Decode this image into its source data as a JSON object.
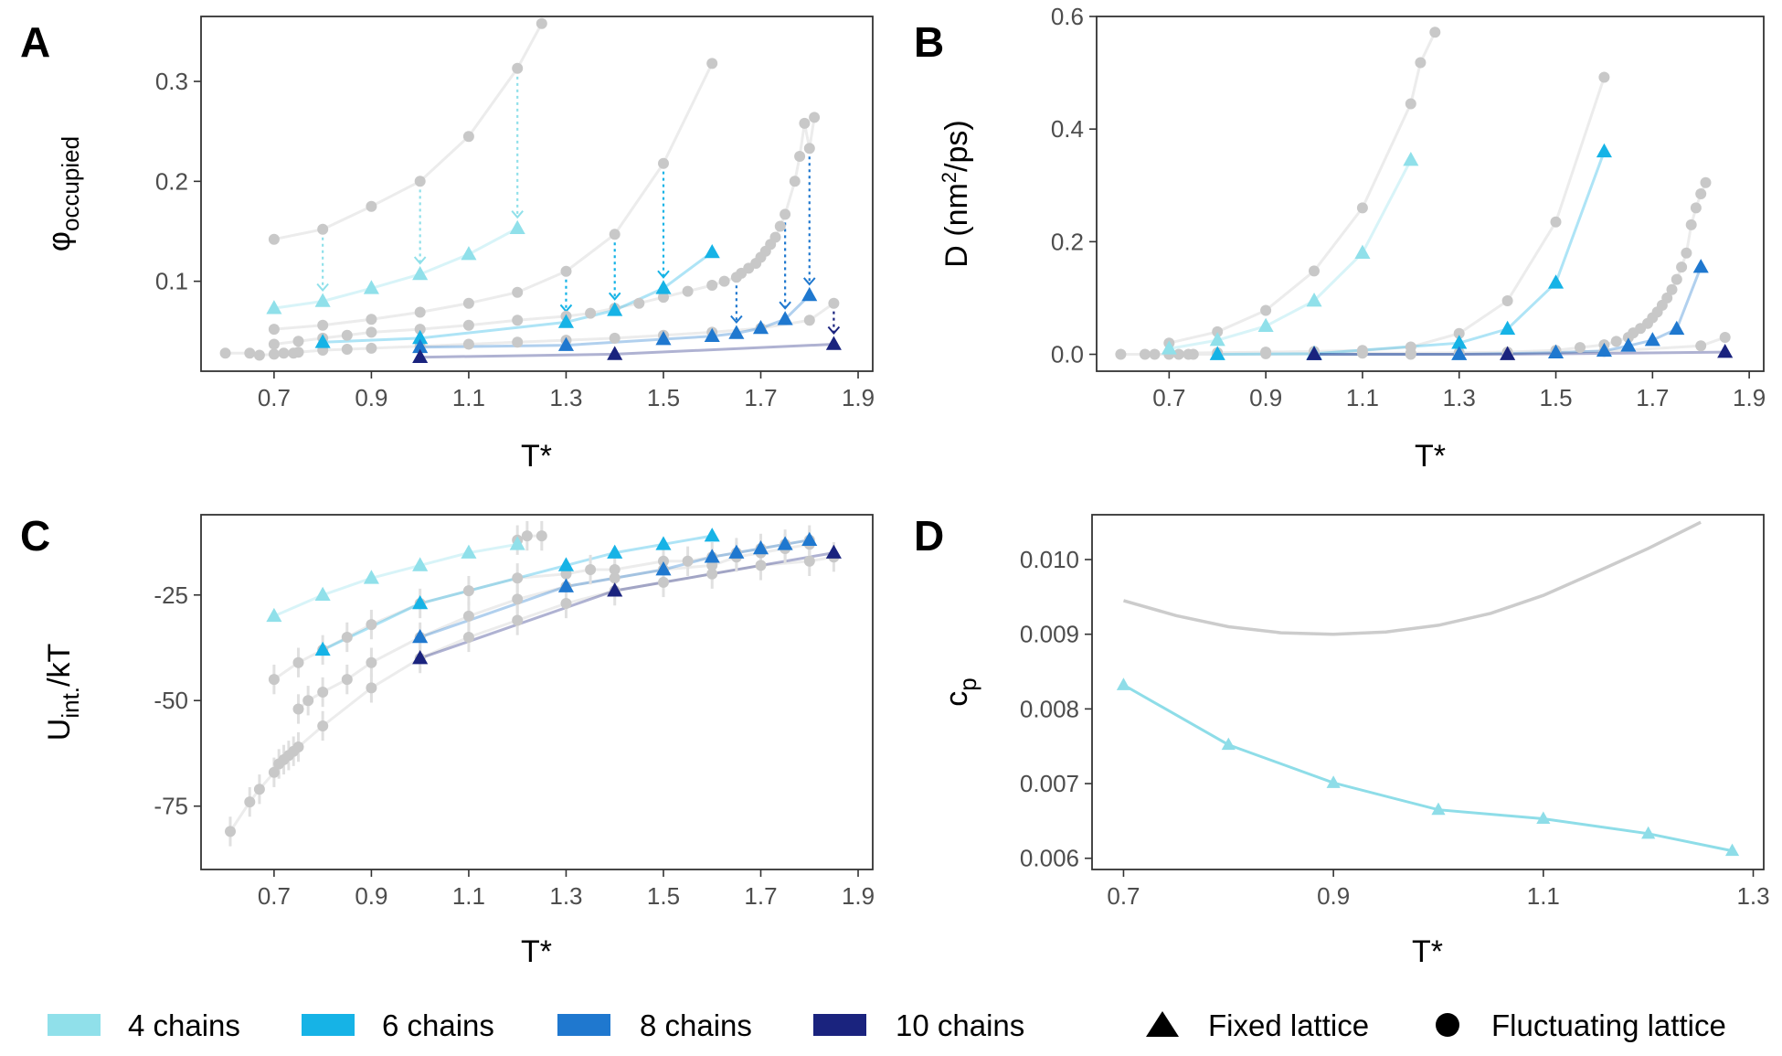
{
  "colors": {
    "c4": "#90e0ea",
    "c6": "#16b3e6",
    "c8": "#1f78cf",
    "c10": "#1a237e",
    "fluct": "#c8c8c8",
    "fluct_line": "#ececec",
    "cp_fluct": "#cccccc",
    "cp_fixed": "#8edde8",
    "arrow4": "#90e0ea",
    "arrow6": "#16b3e6",
    "arrow8": "#1f78cf",
    "arrow10": "#1a237e"
  },
  "legend": {
    "chains": [
      {
        "label": "4 chains",
        "color": "#90e0ea"
      },
      {
        "label": "6 chains",
        "color": "#16b3e6"
      },
      {
        "label": "8 chains",
        "color": "#1f78cf"
      },
      {
        "label": "10 chains",
        "color": "#1a237e"
      }
    ],
    "shapes": [
      {
        "label": "Fixed lattice",
        "shape": "triangle"
      },
      {
        "label": "Fluctuating lattice",
        "shape": "circle"
      }
    ]
  },
  "chart_data": [
    {
      "id": "A",
      "panel_label": "A",
      "type": "scatter",
      "xlabel": "T*",
      "ylabel_main": "φ",
      "ylabel_sub": "occupied",
      "xlim": [
        0.55,
        1.93
      ],
      "ylim": [
        0.01,
        0.365
      ],
      "xticks": [
        "0.7",
        "0.9",
        "1.1",
        "1.3",
        "1.5",
        "1.7",
        "1.9"
      ],
      "yticks": [
        "0.1",
        "0.2",
        "0.3"
      ],
      "fluctuating": [
        {
          "name": "4 chains",
          "x": [
            0.7,
            0.8,
            0.9,
            1.0,
            1.1,
            1.2,
            1.25
          ],
          "y": [
            0.142,
            0.152,
            0.175,
            0.2,
            0.245,
            0.313,
            0.358
          ]
        },
        {
          "name": "6 chains",
          "x": [
            0.7,
            0.8,
            0.9,
            1.0,
            1.1,
            1.2,
            1.3,
            1.4,
            1.5,
            1.6
          ],
          "y": [
            0.052,
            0.056,
            0.062,
            0.069,
            0.078,
            0.089,
            0.11,
            0.147,
            0.218,
            0.318
          ]
        },
        {
          "name": "8 chains",
          "x": [
            0.7,
            0.75,
            0.8,
            0.85,
            0.9,
            1.0,
            1.1,
            1.2,
            1.3,
            1.35,
            1.4,
            1.45,
            1.5,
            1.55,
            1.6,
            1.625,
            1.65,
            1.66,
            1.675,
            1.69,
            1.7,
            1.71,
            1.72,
            1.73,
            1.74,
            1.75,
            1.77,
            1.78,
            1.79,
            1.8,
            1.81
          ],
          "y": [
            0.037,
            0.04,
            0.043,
            0.046,
            0.049,
            0.052,
            0.056,
            0.061,
            0.065,
            0.068,
            0.073,
            0.078,
            0.084,
            0.09,
            0.096,
            0.1,
            0.104,
            0.108,
            0.113,
            0.118,
            0.124,
            0.13,
            0.137,
            0.144,
            0.155,
            0.167,
            0.2,
            0.225,
            0.258,
            0.233,
            0.264
          ]
        },
        {
          "name": "10 chains",
          "x": [
            0.6,
            0.65,
            0.67,
            0.7,
            0.72,
            0.74,
            0.75,
            0.8,
            0.85,
            0.9,
            1.0,
            1.1,
            1.2,
            1.3,
            1.4,
            1.5,
            1.6,
            1.7,
            1.8,
            1.85
          ],
          "y": [
            0.028,
            0.028,
            0.026,
            0.027,
            0.028,
            0.028,
            0.029,
            0.031,
            0.032,
            0.033,
            0.035,
            0.037,
            0.039,
            0.041,
            0.043,
            0.046,
            0.049,
            0.053,
            0.061,
            0.078
          ]
        }
      ],
      "fixed": [
        {
          "name": "4 chains",
          "x": [
            0.7,
            0.8,
            0.9,
            1.0,
            1.1,
            1.2
          ],
          "y": [
            0.073,
            0.08,
            0.093,
            0.107,
            0.127,
            0.153
          ]
        },
        {
          "name": "6 chains",
          "x": [
            0.8,
            1.0,
            1.3,
            1.4,
            1.5,
            1.6
          ],
          "y": [
            0.039,
            0.043,
            0.059,
            0.071,
            0.093,
            0.129
          ]
        },
        {
          "name": "8 chains",
          "x": [
            1.0,
            1.3,
            1.5,
            1.6,
            1.65,
            1.7,
            1.75,
            1.8
          ],
          "y": [
            0.034,
            0.036,
            0.042,
            0.045,
            0.048,
            0.053,
            0.062,
            0.086
          ]
        },
        {
          "name": "10 chains",
          "x": [
            1.0,
            1.4,
            1.85
          ],
          "y": [
            0.024,
            0.027,
            0.037
          ]
        }
      ],
      "arrows": [
        {
          "series": "4 chains",
          "x": 0.8,
          "from": 0.152,
          "to": 0.08
        },
        {
          "series": "4 chains",
          "x": 1.0,
          "from": 0.2,
          "to": 0.107
        },
        {
          "series": "4 chains",
          "x": 1.2,
          "from": 0.313,
          "to": 0.153
        },
        {
          "series": "6 chains",
          "x": 1.3,
          "from": 0.11,
          "to": 0.059
        },
        {
          "series": "6 chains",
          "x": 1.4,
          "from": 0.147,
          "to": 0.071
        },
        {
          "series": "6 chains",
          "x": 1.5,
          "from": 0.218,
          "to": 0.093
        },
        {
          "series": "8 chains",
          "x": 1.65,
          "from": 0.104,
          "to": 0.048
        },
        {
          "series": "8 chains",
          "x": 1.75,
          "from": 0.167,
          "to": 0.062
        },
        {
          "series": "8 chains",
          "x": 1.8,
          "from": 0.233,
          "to": 0.086
        },
        {
          "series": "10 chains",
          "x": 1.85,
          "from": 0.078,
          "to": 0.037
        }
      ]
    },
    {
      "id": "B",
      "panel_label": "B",
      "type": "scatter",
      "xlabel": "T*",
      "ylabel_main": "D (nm",
      "ylabel_sup": "2",
      "ylabel_end": "/ps)",
      "xlim": [
        0.55,
        1.93
      ],
      "ylim": [
        -0.03,
        0.6
      ],
      "xticks": [
        "0.7",
        "0.9",
        "1.1",
        "1.3",
        "1.5",
        "1.7",
        "1.9"
      ],
      "yticks": [
        "0.0",
        "0.2",
        "0.4",
        "0.6"
      ],
      "fluctuating": [
        {
          "name": "4 chains",
          "x": [
            0.7,
            0.8,
            0.9,
            1.0,
            1.1,
            1.2,
            1.22,
            1.25
          ],
          "y": [
            0.02,
            0.04,
            0.078,
            0.148,
            0.26,
            0.445,
            0.518,
            0.572
          ]
        },
        {
          "name": "6 chains",
          "x": [
            0.7,
            0.8,
            0.9,
            1.0,
            1.1,
            1.2,
            1.3,
            1.4,
            1.5,
            1.6
          ],
          "y": [
            0.002,
            0.003,
            0.004,
            0.005,
            0.007,
            0.013,
            0.037,
            0.095,
            0.235,
            0.492
          ]
        },
        {
          "name": "8 chains",
          "x": [
            0.6,
            0.65,
            0.67,
            0.7,
            0.72,
            0.74,
            0.75,
            0.8,
            0.9,
            1.0,
            1.1,
            1.2,
            1.3,
            1.4,
            1.5,
            1.55,
            1.6,
            1.625,
            1.65,
            1.66,
            1.675,
            1.69,
            1.7,
            1.71,
            1.72,
            1.73,
            1.74,
            1.75,
            1.76,
            1.77,
            1.78,
            1.79,
            1.8,
            1.81
          ],
          "y": [
            0.0,
            0.0,
            0.0,
            0.0,
            0.0,
            0.0,
            0.0,
            0.0,
            0.001,
            0.001,
            0.002,
            0.002,
            0.003,
            0.004,
            0.007,
            0.012,
            0.017,
            0.023,
            0.03,
            0.038,
            0.046,
            0.055,
            0.065,
            0.075,
            0.087,
            0.1,
            0.115,
            0.133,
            0.155,
            0.18,
            0.23,
            0.26,
            0.285,
            0.305
          ]
        },
        {
          "name": "10 chains",
          "x": [
            0.8,
            1.0,
            1.2,
            1.4,
            1.6,
            1.8,
            1.85
          ],
          "y": [
            0.0,
            0.0,
            0.0,
            0.002,
            0.005,
            0.015,
            0.03
          ]
        }
      ],
      "fixed": [
        {
          "name": "4 chains",
          "x": [
            0.7,
            0.8,
            0.9,
            1.0,
            1.1,
            1.2
          ],
          "y": [
            0.01,
            0.025,
            0.05,
            0.095,
            0.18,
            0.345
          ]
        },
        {
          "name": "6 chains",
          "x": [
            0.8,
            1.0,
            1.3,
            1.4,
            1.5,
            1.6
          ],
          "y": [
            0.0,
            0.001,
            0.02,
            0.045,
            0.127,
            0.36
          ]
        },
        {
          "name": "8 chains",
          "x": [
            1.0,
            1.3,
            1.5,
            1.6,
            1.65,
            1.7,
            1.75,
            1.8
          ],
          "y": [
            0.0,
            0.0,
            0.003,
            0.006,
            0.015,
            0.025,
            0.045,
            0.155
          ]
        },
        {
          "name": "10 chains",
          "x": [
            1.0,
            1.4,
            1.85
          ],
          "y": [
            0.0,
            0.0,
            0.004
          ]
        }
      ]
    },
    {
      "id": "C",
      "panel_label": "C",
      "type": "scatter",
      "xlabel": "T*",
      "ylabel_main": "U",
      "ylabel_sub": "int.",
      "ylabel_end": "/kT",
      "xlim": [
        0.55,
        1.93
      ],
      "ylim": [
        -90,
        -6
      ],
      "xticks": [
        "0.7",
        "0.9",
        "1.1",
        "1.3",
        "1.5",
        "1.7",
        "1.9"
      ],
      "yticks": [
        "-25",
        "-50",
        "-75"
      ],
      "fluctuating": [
        {
          "name": "4 chains",
          "x": [
            1.2,
            1.22,
            1.25
          ],
          "y": [
            -12,
            -11,
            -11
          ]
        },
        {
          "name": "6 chains",
          "x": [
            0.7,
            0.75,
            0.8,
            0.85,
            0.9,
            1.0,
            1.1,
            1.2,
            1.3,
            1.35,
            1.4,
            1.5,
            1.55,
            1.6,
            1.65,
            1.7,
            1.75,
            1.8
          ],
          "y": [
            -45,
            -41,
            -38,
            -35,
            -32,
            -27,
            -24,
            -21,
            -20,
            -19,
            -19,
            -17,
            -17,
            -16,
            -15,
            -14,
            -13,
            -12
          ]
        },
        {
          "name": "8 chains",
          "x": [
            0.75,
            0.77,
            0.8,
            0.85,
            0.9,
            1.0,
            1.1,
            1.2,
            1.3,
            1.4,
            1.5,
            1.6,
            1.65,
            1.7,
            1.75,
            1.8
          ],
          "y": [
            -52,
            -50,
            -48,
            -45,
            -41,
            -35,
            -30,
            -26,
            -23,
            -21,
            -19,
            -18,
            -16,
            -15,
            -14,
            -13
          ]
        },
        {
          "name": "10 chains",
          "x": [
            0.61,
            0.65,
            0.67,
            0.7,
            0.71,
            0.72,
            0.73,
            0.74,
            0.75,
            0.8,
            0.9,
            1.0,
            1.1,
            1.2,
            1.3,
            1.4,
            1.5,
            1.6,
            1.7,
            1.8,
            1.85
          ],
          "y": [
            -81,
            -74,
            -71,
            -67,
            -65,
            -64,
            -63,
            -62,
            -61,
            -56,
            -47,
            -40,
            -35,
            -31,
            -27,
            -24,
            -22,
            -20,
            -18,
            -17,
            -16
          ]
        }
      ],
      "fixed": [
        {
          "name": "4 chains",
          "x": [
            0.7,
            0.8,
            0.9,
            1.0,
            1.1,
            1.2
          ],
          "y": [
            -30,
            -25,
            -21,
            -18,
            -15,
            -13
          ]
        },
        {
          "name": "6 chains",
          "x": [
            0.8,
            1.0,
            1.3,
            1.4,
            1.5,
            1.6
          ],
          "y": [
            -38,
            -27,
            -18,
            -15,
            -13,
            -11
          ]
        },
        {
          "name": "8 chains",
          "x": [
            1.0,
            1.3,
            1.5,
            1.6,
            1.65,
            1.7,
            1.75,
            1.8
          ],
          "y": [
            -35,
            -23,
            -19,
            -16,
            -15,
            -14,
            -13,
            -12
          ]
        },
        {
          "name": "10 chains",
          "x": [
            1.0,
            1.4,
            1.85
          ],
          "y": [
            -40,
            -24,
            -15
          ]
        }
      ]
    },
    {
      "id": "D",
      "panel_label": "D",
      "type": "line",
      "xlabel": "T*",
      "ylabel_main": "c",
      "ylabel_sub": "p",
      "xlim": [
        0.67,
        1.31
      ],
      "ylim": [
        0.00585,
        0.0106
      ],
      "xticks": [
        "0.7",
        "0.9",
        "1.1",
        "1.3"
      ],
      "yticks": [
        "0.006",
        "0.007",
        "0.008",
        "0.009",
        "0.010"
      ],
      "series": [
        {
          "name": "Fluctuating lattice (4 chains)",
          "x": [
            0.7,
            0.75,
            0.8,
            0.85,
            0.9,
            0.95,
            1.0,
            1.05,
            1.1,
            1.15,
            1.2,
            1.25
          ],
          "y": [
            0.00945,
            0.00925,
            0.0091,
            0.00902,
            0.009,
            0.00903,
            0.00912,
            0.00928,
            0.00952,
            0.00983,
            0.01015,
            0.0105
          ]
        },
        {
          "name": "Fixed lattice (4 chains)",
          "x": [
            0.7,
            0.8,
            0.9,
            1.0,
            1.1,
            1.2,
            1.28
          ],
          "y": [
            0.00832,
            0.00752,
            0.00701,
            0.00665,
            0.00653,
            0.00633,
            0.0061
          ]
        }
      ]
    }
  ]
}
